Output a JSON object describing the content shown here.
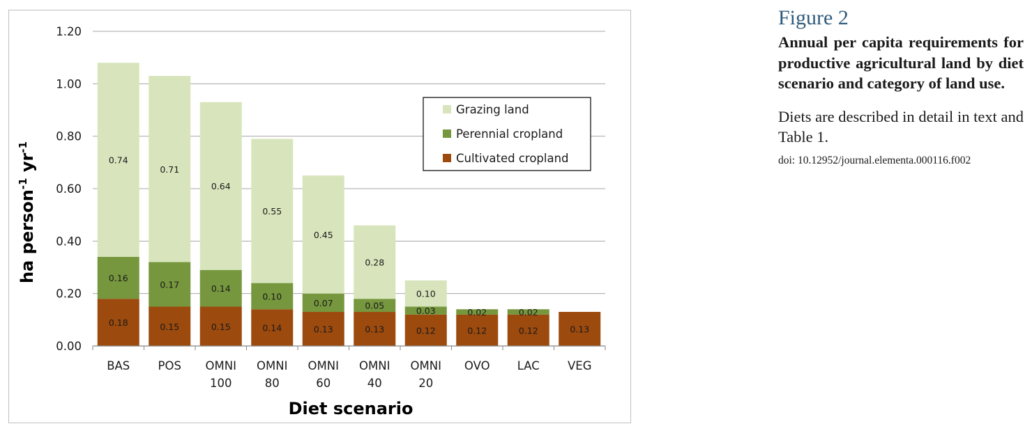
{
  "caption": {
    "figure_label": "Figure 2",
    "heading": "Annual per capita requirements for productive agricultural land by diet scenario and category of land use.",
    "description": "Diets are described in detail in text and Table 1.",
    "doi": "doi: 10.12952/journal.elementa.000116.f002"
  },
  "chart_data": {
    "type": "bar",
    "stacked": true,
    "xlabel": "Diet scenario",
    "ylabel": {
      "base": "ha person",
      "sup1": "-1",
      "mid": " yr",
      "sup2": "-1"
    },
    "ylim": [
      0,
      1.2
    ],
    "yticks": [
      "0.00",
      "0.20",
      "0.40",
      "0.60",
      "0.80",
      "1.00",
      "1.20"
    ],
    "grid": true,
    "legend_position": "upper-right",
    "categories": [
      [
        "BAS"
      ],
      [
        "POS"
      ],
      [
        "OMNI",
        "100"
      ],
      [
        "OMNI",
        "80"
      ],
      [
        "OMNI",
        "60"
      ],
      [
        "OMNI",
        "40"
      ],
      [
        "OMNI",
        "20"
      ],
      [
        "OVO"
      ],
      [
        "LAC"
      ],
      [
        "VEG"
      ]
    ],
    "series": [
      {
        "name": "Cultivated cropland",
        "color": "#9c4a0e",
        "values": [
          0.18,
          0.15,
          0.15,
          0.14,
          0.13,
          0.13,
          0.12,
          0.12,
          0.12,
          0.13
        ],
        "labels": [
          "0.18",
          "0.15",
          "0.15",
          "0.14",
          "0.13",
          "0.13",
          "0.12",
          "0.12",
          "0.12",
          "0.13"
        ]
      },
      {
        "name": "Perennial cropland",
        "color": "#76973d",
        "values": [
          0.16,
          0.17,
          0.14,
          0.1,
          0.07,
          0.05,
          0.03,
          0.02,
          0.02,
          0
        ],
        "labels": [
          "0.16",
          "0.17",
          "0.14",
          "0.10",
          "0.07",
          "0.05",
          "0.03",
          "0.02",
          "0.02",
          ""
        ]
      },
      {
        "name": "Grazing land",
        "color": "#d8e5bc",
        "values": [
          0.74,
          0.71,
          0.64,
          0.55,
          0.45,
          0.28,
          0.1,
          0,
          0,
          0
        ],
        "labels": [
          "0.74",
          "0.71",
          "0.64",
          "0.55",
          "0.45",
          "0.28",
          "0.10",
          "",
          "",
          ""
        ]
      }
    ],
    "legend_order": [
      "Grazing land",
      "Perennial cropland",
      "Cultivated cropland"
    ]
  }
}
